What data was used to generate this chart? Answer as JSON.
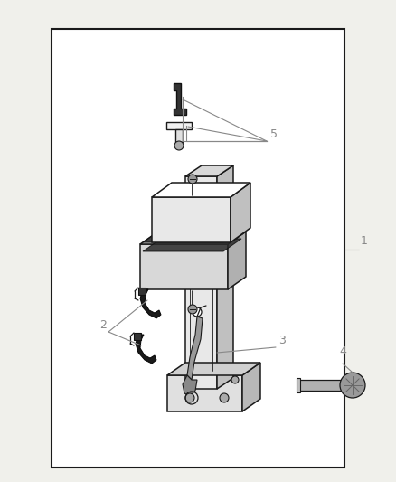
{
  "bg_color": "#f0f0eb",
  "border_color": "#1a1a1a",
  "line_color": "#1a1a1a",
  "label_color": "#888888",
  "white": "#ffffff",
  "light_gray": "#e8e8e8",
  "mid_gray": "#c8c8c8",
  "dark_gray": "#555555",
  "black": "#111111",
  "figsize": [
    4.38,
    5.33
  ],
  "dpi": 100,
  "border": [
    0.13,
    0.06,
    0.74,
    0.91
  ]
}
